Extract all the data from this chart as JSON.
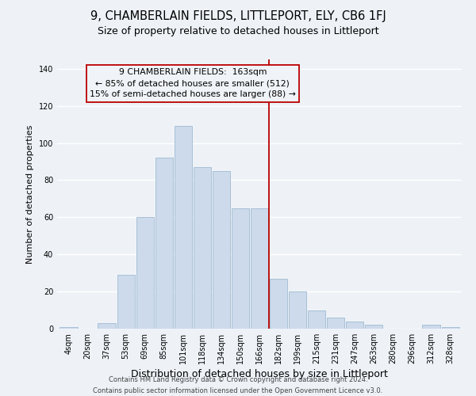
{
  "title": "9, CHAMBERLAIN FIELDS, LITTLEPORT, ELY, CB6 1FJ",
  "subtitle": "Size of property relative to detached houses in Littleport",
  "xlabel": "Distribution of detached houses by size in Littleport",
  "ylabel": "Number of detached properties",
  "footer_lines": [
    "Contains HM Land Registry data © Crown copyright and database right 2024.",
    "Contains public sector information licensed under the Open Government Licence v3.0."
  ],
  "bar_labels": [
    "4sqm",
    "20sqm",
    "37sqm",
    "53sqm",
    "69sqm",
    "85sqm",
    "101sqm",
    "118sqm",
    "134sqm",
    "150sqm",
    "166sqm",
    "182sqm",
    "199sqm",
    "215sqm",
    "231sqm",
    "247sqm",
    "263sqm",
    "280sqm",
    "296sqm",
    "312sqm",
    "328sqm"
  ],
  "bar_heights": [
    1,
    0,
    3,
    29,
    60,
    92,
    109,
    87,
    85,
    65,
    65,
    27,
    20,
    10,
    6,
    4,
    2,
    0,
    0,
    2,
    1
  ],
  "bar_color": "#ccdaeb",
  "bar_edge_color": "#a8c0d6",
  "vline_x_idx": 10.5,
  "vline_color": "#bb0000",
  "annotation_title": "9 CHAMBERLAIN FIELDS:  163sqm",
  "annotation_line1": "← 85% of detached houses are smaller (512)",
  "annotation_line2": "15% of semi-detached houses are larger (88) →",
  "annotation_box_edge": "#bb0000",
  "annotation_box_face": "#f0f4f8",
  "ylim": [
    0,
    145
  ],
  "yticks": [
    0,
    20,
    40,
    60,
    80,
    100,
    120,
    140
  ],
  "background_color": "#eef2f7",
  "plot_bg_color": "#eef2f7",
  "grid_color": "#ffffff",
  "title_fontsize": 10.5,
  "subtitle_fontsize": 9,
  "ylabel_fontsize": 8,
  "xlabel_fontsize": 9,
  "tick_fontsize": 7,
  "footer_fontsize": 6,
  "ann_fontsize": 7.8
}
